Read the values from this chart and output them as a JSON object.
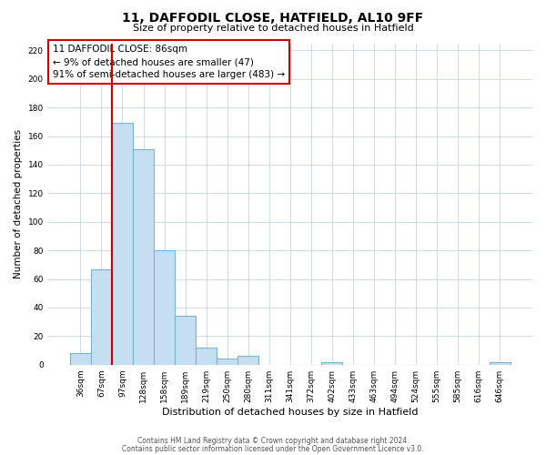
{
  "title": "11, DAFFODIL CLOSE, HATFIELD, AL10 9FF",
  "subtitle": "Size of property relative to detached houses in Hatfield",
  "xlabel": "Distribution of detached houses by size in Hatfield",
  "ylabel": "Number of detached properties",
  "bar_labels": [
    "36sqm",
    "67sqm",
    "97sqm",
    "128sqm",
    "158sqm",
    "189sqm",
    "219sqm",
    "250sqm",
    "280sqm",
    "311sqm",
    "341sqm",
    "372sqm",
    "402sqm",
    "433sqm",
    "463sqm",
    "494sqm",
    "524sqm",
    "555sqm",
    "585sqm",
    "616sqm",
    "646sqm"
  ],
  "bar_values": [
    8,
    67,
    169,
    151,
    80,
    34,
    12,
    4,
    6,
    0,
    0,
    0,
    2,
    0,
    0,
    0,
    0,
    0,
    0,
    0,
    2
  ],
  "bar_color": "#c5dff0",
  "bar_edge_color": "#7ab4d4",
  "ylim": [
    0,
    225
  ],
  "yticks": [
    0,
    20,
    40,
    60,
    80,
    100,
    120,
    140,
    160,
    180,
    200,
    220
  ],
  "marker_line_color": "#cc0000",
  "annotation_box_text": "11 DAFFODIL CLOSE: 86sqm\n← 9% of detached houses are smaller (47)\n91% of semi-detached houses are larger (483) →",
  "footer_line1": "Contains HM Land Registry data © Crown copyright and database right 2024.",
  "footer_line2": "Contains public sector information licensed under the Open Government Licence v3.0.",
  "background_color": "#ffffff",
  "grid_color": "#c8d4e8"
}
